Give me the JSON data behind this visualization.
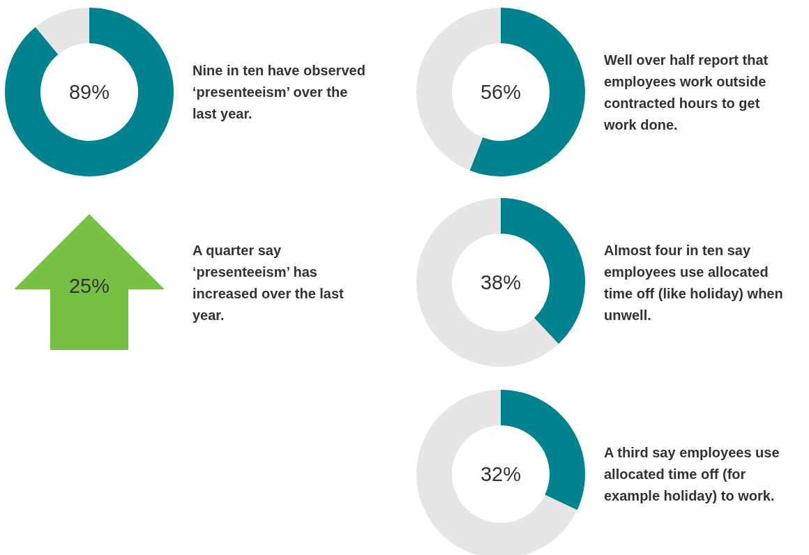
{
  "chart_data": [
    {
      "type": "donut",
      "categories": [
        null,
        null
      ],
      "values": [
        89,
        11
      ],
      "colors": [
        "#00838f",
        "#e6e6e6"
      ],
      "annotations": [
        "89%",
        "Nine in ten have observed ‘presenteeism’ over the last year."
      ]
    },
    {
      "type": "donut",
      "categories": [
        null,
        null
      ],
      "values": [
        56,
        44
      ],
      "colors": [
        "#00838f",
        "#e6e6e6"
      ],
      "annotations": [
        "56%",
        "Well over half report that employees work outside contracted hours to get work done."
      ]
    },
    {
      "type": "other",
      "annotations": [
        "25%",
        "A quarter say ‘presenteeism’ has increased over the last year."
      ]
    },
    {
      "type": "donut",
      "categories": [
        null,
        null
      ],
      "values": [
        38,
        62
      ],
      "colors": [
        "#00838f",
        "#e6e6e6"
      ],
      "annotations": [
        "38%",
        "Almost four in ten say employees use allocated time off (like holiday) when unwell."
      ]
    },
    {
      "type": "donut",
      "categories": [
        null,
        null
      ],
      "values": [
        32,
        68
      ],
      "colors": [
        "#00838f",
        "#e6e6e6"
      ],
      "annotations": [
        "32%",
        "A third say employees use allocated time off (for example holiday) to work."
      ]
    }
  ]
}
